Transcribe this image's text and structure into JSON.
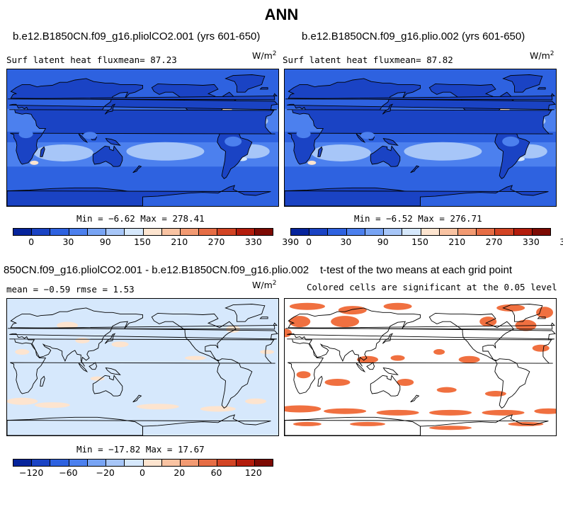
{
  "title": "ANN",
  "panels": {
    "p1": {
      "case": "b.e12.B1850CN.f09_g16.pliolCO2.001 (yrs 601-650)",
      "left_text": "Surf latent heat fluxmean=  87.23",
      "units": "W/m",
      "units_exp": "2",
      "minmax": "Min =  −6.62 Max = 278.41"
    },
    "p2": {
      "case": "b.e12.B1850CN.f09_g16.plio.002 (yrs 601-650)",
      "left_text": "Surf latent heat fluxmean=  87.82",
      "units": "W/m",
      "units_exp": "2",
      "minmax": "Min =  −6.52 Max = 276.71"
    },
    "p3": {
      "case": "850CN.f09_g16.pliolCO2.001 - b.e12.B1850CN.f09_g16.plio.002",
      "left_text": "mean =  −0.59    rmse =   1.53",
      "units": "W/m",
      "units_exp": "2",
      "minmax": "Min = −17.82 Max =  17.67"
    },
    "p4": {
      "case": "t-test of the two means at each grid point",
      "left_text": "Colored cells are significant at the 0.05 level"
    }
  },
  "colorbar_abs": {
    "colors": [
      "#06249c",
      "#1a43c4",
      "#2e62e0",
      "#4c80ee",
      "#78a4f4",
      "#a7c6f8",
      "#d6e8fc",
      "#fde4cf",
      "#f9c3a2",
      "#f29a72",
      "#e66d45",
      "#d24424",
      "#b31c0c",
      "#7d0a03"
    ],
    "labels": [
      "0",
      "30",
      "90",
      "150",
      "210",
      "270",
      "330",
      "390"
    ]
  },
  "colorbar_diff": {
    "colors": [
      "#06249c",
      "#1a43c4",
      "#2e62e0",
      "#4c80ee",
      "#78a4f4",
      "#a7c6f8",
      "#d6e8fc",
      "#fde4cf",
      "#f9c3a2",
      "#f29a72",
      "#e66d45",
      "#d24424",
      "#b31c0c",
      "#7d0a03"
    ],
    "labels": [
      "−120",
      "−60",
      "−20",
      "0",
      "20",
      "60",
      "120"
    ]
  },
  "map_colors": {
    "ocean_deep": "#2e62e0",
    "ocean_mid": "#4c80ee",
    "ocean_light": "#a7c6f8",
    "ocean_pale": "#d6e8fc",
    "land_low": "#1a43c4",
    "land_high": "#06249c",
    "warm": "#fde4cf",
    "signif": "#f07040"
  }
}
